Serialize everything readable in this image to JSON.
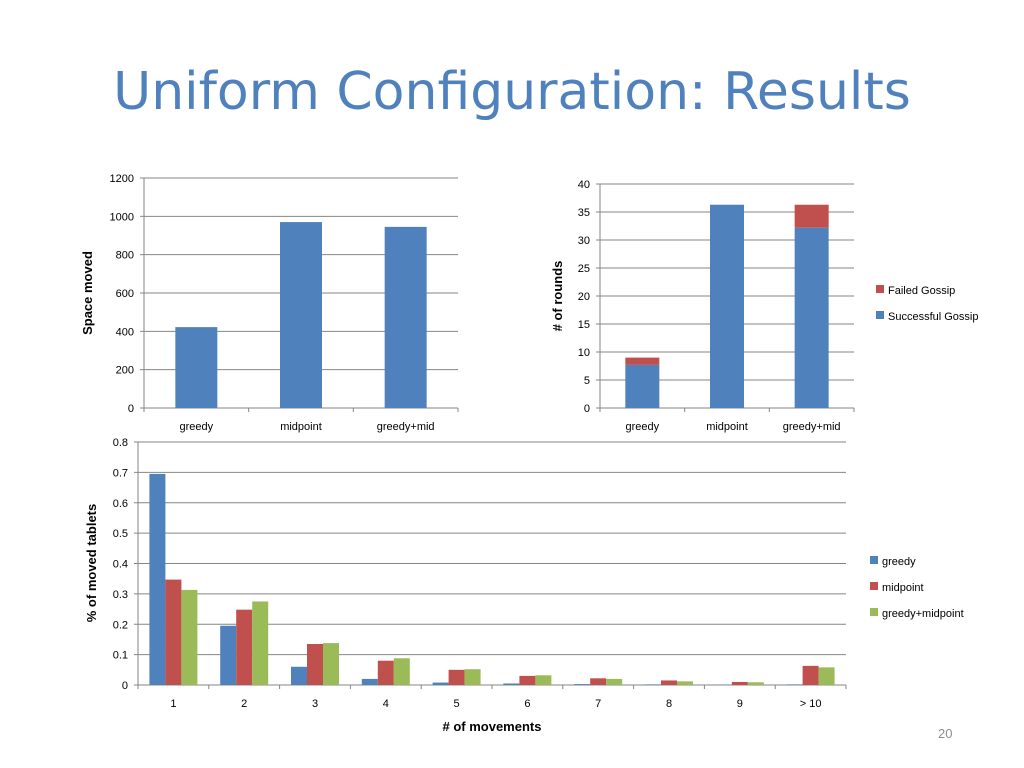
{
  "slide": {
    "title": "Uniform Configuration: Results",
    "page_number": "20"
  },
  "colors": {
    "blue": "#4f81bd",
    "red": "#c0504d",
    "green": "#9bbb59",
    "title": "#4f81bd"
  },
  "chart_data": [
    {
      "id": "space-moved",
      "type": "bar",
      "categories": [
        "greedy",
        "midpoint",
        "greedy+mid"
      ],
      "series": [
        {
          "values": [
            422,
            970,
            945
          ]
        }
      ],
      "title": "",
      "xlabel": "",
      "ylabel": "Space moved",
      "ylim": [
        0,
        1200
      ],
      "yticks": [
        0,
        200,
        400,
        600,
        800,
        1000,
        1200
      ],
      "grid": true,
      "legend": "none"
    },
    {
      "id": "rounds",
      "type": "bar",
      "stacked": true,
      "categories": [
        "greedy",
        "midpoint",
        "greedy+mid"
      ],
      "series": [
        {
          "name": "Successful Gossip",
          "values": [
            7.7,
            36.3,
            32.2
          ]
        },
        {
          "name": "Failed Gossip",
          "values": [
            1.3,
            0,
            4.1
          ]
        }
      ],
      "title": "",
      "xlabel": "",
      "ylabel": "# of rounds",
      "ylim": [
        0,
        40
      ],
      "yticks": [
        0,
        5,
        10,
        15,
        20,
        25,
        30,
        35,
        40
      ],
      "grid": true,
      "legend": "right"
    },
    {
      "id": "movements",
      "type": "bar",
      "categories": [
        "1",
        "2",
        "3",
        "4",
        "5",
        "6",
        "7",
        "8",
        "9",
        "> 10"
      ],
      "series": [
        {
          "name": "greedy",
          "values": [
            0.695,
            0.195,
            0.06,
            0.02,
            0.008,
            0.005,
            0.003,
            0.002,
            0.001,
            0.002
          ]
        },
        {
          "name": "midpoint",
          "values": [
            0.347,
            0.248,
            0.135,
            0.08,
            0.05,
            0.03,
            0.022,
            0.015,
            0.01,
            0.063
          ]
        },
        {
          "name": "greedy+midpoint",
          "values": [
            0.313,
            0.275,
            0.138,
            0.088,
            0.052,
            0.032,
            0.02,
            0.012,
            0.009,
            0.058
          ]
        }
      ],
      "title": "",
      "xlabel": "# of movements",
      "ylabel": "% of moved tablets",
      "ylim": [
        0,
        0.8
      ],
      "yticks": [
        0,
        0.1,
        0.2,
        0.3,
        0.4,
        0.5,
        0.6,
        0.7,
        0.8
      ],
      "grid": true,
      "legend": "right"
    }
  ]
}
